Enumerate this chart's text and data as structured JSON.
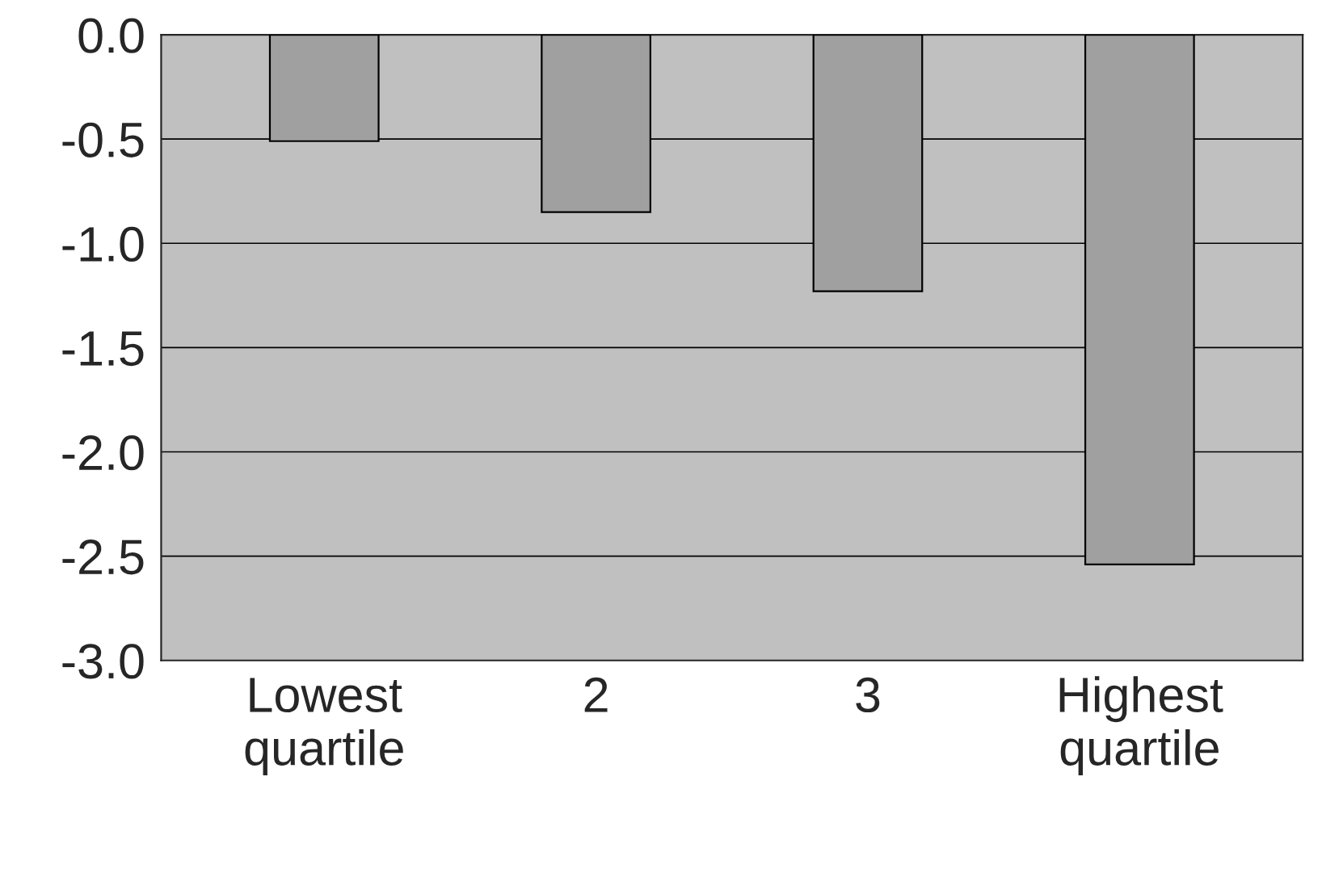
{
  "chart_data": {
    "type": "bar",
    "categories": [
      "Lowest\nquartile",
      "2",
      "3",
      "Highest\nquartile"
    ],
    "values": [
      -0.51,
      -0.85,
      -1.23,
      -2.54
    ],
    "color": "#a0a0a0",
    "ylim": [
      -3.0,
      0.0
    ],
    "yticks": [
      {
        "value": -3.0,
        "label": "-3.0"
      },
      {
        "value": -2.5,
        "label": "-2.5"
      },
      {
        "value": -2.0,
        "label": "-2.0"
      },
      {
        "value": -1.5,
        "label": "-1.5"
      },
      {
        "value": -1.0,
        "label": "-1.0"
      },
      {
        "value": -0.5,
        "label": "-0.5"
      },
      {
        "value": 0.0,
        "label": "0.0"
      }
    ],
    "grid": "y"
  }
}
